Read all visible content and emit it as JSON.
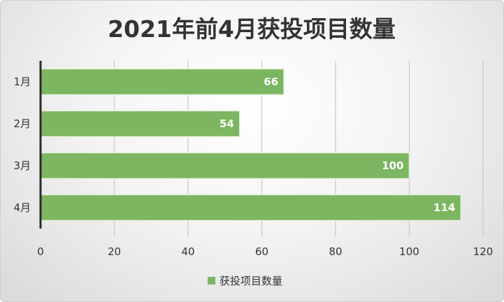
{
  "chart_data": {
    "type": "bar",
    "orientation": "horizontal",
    "title": "2021年前4月获投项目数量",
    "categories": [
      "1月",
      "2月",
      "3月",
      "4月"
    ],
    "series": [
      {
        "name": "获投项目数量",
        "values": [
          66,
          54,
          100,
          114
        ],
        "color": "#7cb660"
      }
    ],
    "xlim": [
      0,
      120
    ],
    "xticks": [
      "0",
      "20",
      "40",
      "60",
      "80",
      "100",
      "120"
    ],
    "grid": "vertical",
    "legend": "bottom",
    "data_labels": true
  }
}
